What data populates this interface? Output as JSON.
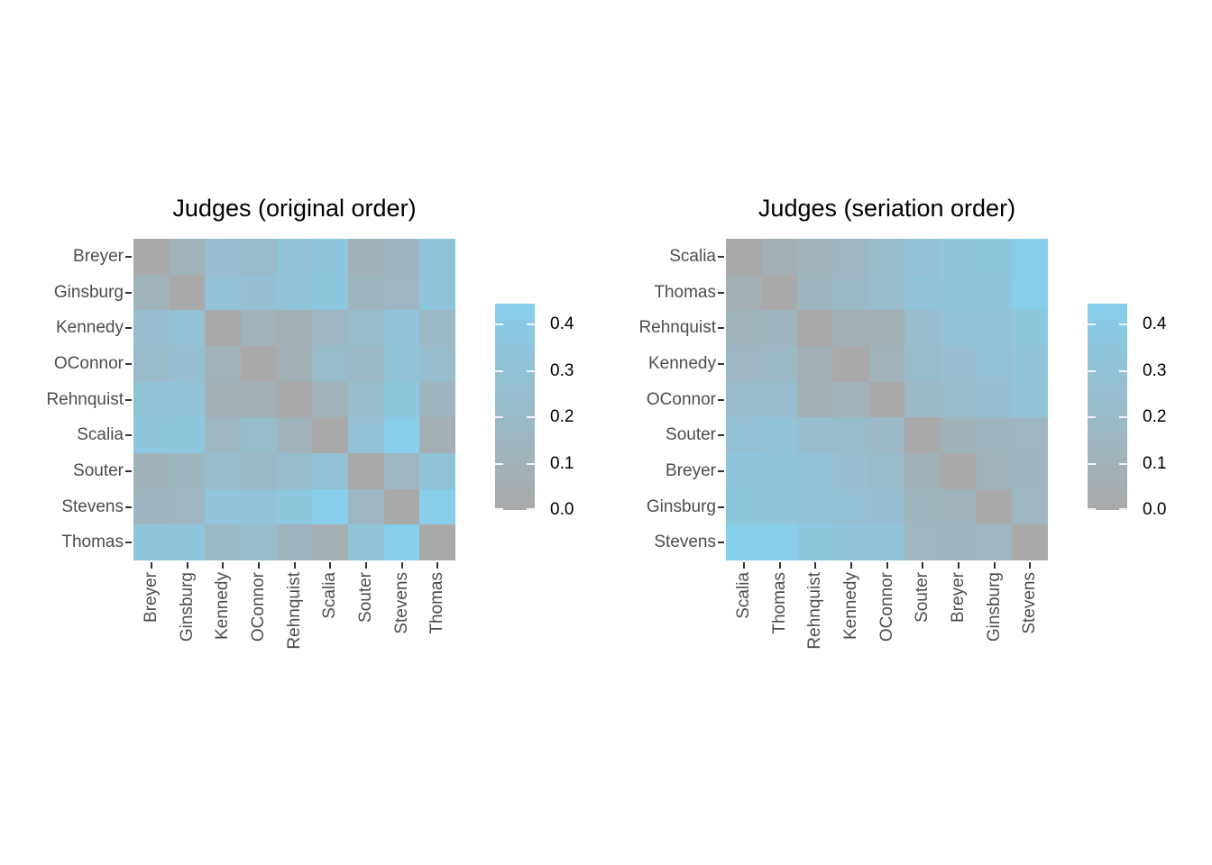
{
  "figure": {
    "description": "Two heatmaps of judge voting dissimilarities",
    "panel_titles": [
      "Judges (original order)",
      "Judges (seriation order)"
    ]
  },
  "chart_data": [
    {
      "type": "heatmap",
      "title": "Judges (original order)",
      "row_labels": [
        "Breyer",
        "Ginsburg",
        "Kennedy",
        "OConnor",
        "Rehnquist",
        "Scalia",
        "Souter",
        "Stevens",
        "Thomas"
      ],
      "col_labels": [
        "Breyer",
        "Ginsburg",
        "Kennedy",
        "OConnor",
        "Rehnquist",
        "Scalia",
        "Souter",
        "Stevens",
        "Thomas"
      ],
      "matrix": [
        [
          0.0,
          0.12,
          0.25,
          0.21,
          0.3,
          0.35,
          0.1,
          0.15,
          0.34
        ],
        [
          0.12,
          0.0,
          0.28,
          0.26,
          0.31,
          0.36,
          0.14,
          0.16,
          0.34
        ],
        [
          0.25,
          0.28,
          0.0,
          0.11,
          0.09,
          0.16,
          0.22,
          0.33,
          0.18
        ],
        [
          0.21,
          0.26,
          0.11,
          0.0,
          0.09,
          0.22,
          0.18,
          0.31,
          0.24
        ],
        [
          0.3,
          0.31,
          0.09,
          0.09,
          0.0,
          0.12,
          0.23,
          0.36,
          0.14
        ],
        [
          0.35,
          0.36,
          0.16,
          0.22,
          0.12,
          0.0,
          0.28,
          0.44,
          0.07
        ],
        [
          0.1,
          0.14,
          0.22,
          0.18,
          0.23,
          0.28,
          0.0,
          0.16,
          0.31
        ],
        [
          0.15,
          0.16,
          0.33,
          0.31,
          0.36,
          0.44,
          0.16,
          0.0,
          0.44
        ],
        [
          0.34,
          0.34,
          0.18,
          0.24,
          0.14,
          0.07,
          0.31,
          0.44,
          0.0
        ]
      ],
      "legend": {
        "tick_labels": [
          "0.0",
          "0.1",
          "0.2",
          "0.3",
          "0.4"
        ],
        "tick_values": [
          0,
          0.1,
          0.2,
          0.3,
          0.4
        ],
        "min": 0,
        "max": 0.445,
        "low_color": "#a9a9a9",
        "high_color": "#87ceeb",
        "position": "right"
      },
      "axis": {
        "x_label_rotation_degrees": 90,
        "grid": false
      }
    },
    {
      "type": "heatmap",
      "title": "Judges (seriation order)",
      "row_labels": [
        "Scalia",
        "Thomas",
        "Rehnquist",
        "Kennedy",
        "OConnor",
        "Souter",
        "Breyer",
        "Ginsburg",
        "Stevens"
      ],
      "col_labels": [
        "Scalia",
        "Thomas",
        "Rehnquist",
        "Kennedy",
        "OConnor",
        "Souter",
        "Breyer",
        "Ginsburg",
        "Stevens"
      ],
      "matrix": [
        [
          0.0,
          0.07,
          0.12,
          0.16,
          0.22,
          0.28,
          0.35,
          0.36,
          0.44
        ],
        [
          0.07,
          0.0,
          0.14,
          0.18,
          0.24,
          0.31,
          0.34,
          0.34,
          0.44
        ],
        [
          0.12,
          0.14,
          0.0,
          0.09,
          0.09,
          0.23,
          0.3,
          0.31,
          0.36
        ],
        [
          0.16,
          0.18,
          0.09,
          0.0,
          0.11,
          0.22,
          0.25,
          0.28,
          0.33
        ],
        [
          0.22,
          0.24,
          0.09,
          0.11,
          0.0,
          0.18,
          0.21,
          0.26,
          0.31
        ],
        [
          0.28,
          0.31,
          0.23,
          0.22,
          0.18,
          0.0,
          0.1,
          0.14,
          0.16
        ],
        [
          0.35,
          0.34,
          0.3,
          0.25,
          0.21,
          0.1,
          0.0,
          0.12,
          0.15
        ],
        [
          0.36,
          0.34,
          0.31,
          0.28,
          0.26,
          0.14,
          0.12,
          0.0,
          0.16
        ],
        [
          0.44,
          0.44,
          0.36,
          0.33,
          0.31,
          0.16,
          0.15,
          0.16,
          0.0
        ]
      ],
      "legend": {
        "tick_labels": [
          "0.0",
          "0.1",
          "0.2",
          "0.3",
          "0.4"
        ],
        "tick_values": [
          0,
          0.1,
          0.2,
          0.3,
          0.4
        ],
        "min": 0,
        "max": 0.445,
        "low_color": "#a9a9a9",
        "high_color": "#87ceeb",
        "position": "right"
      },
      "axis": {
        "x_label_rotation_degrees": 90,
        "grid": false
      }
    }
  ]
}
